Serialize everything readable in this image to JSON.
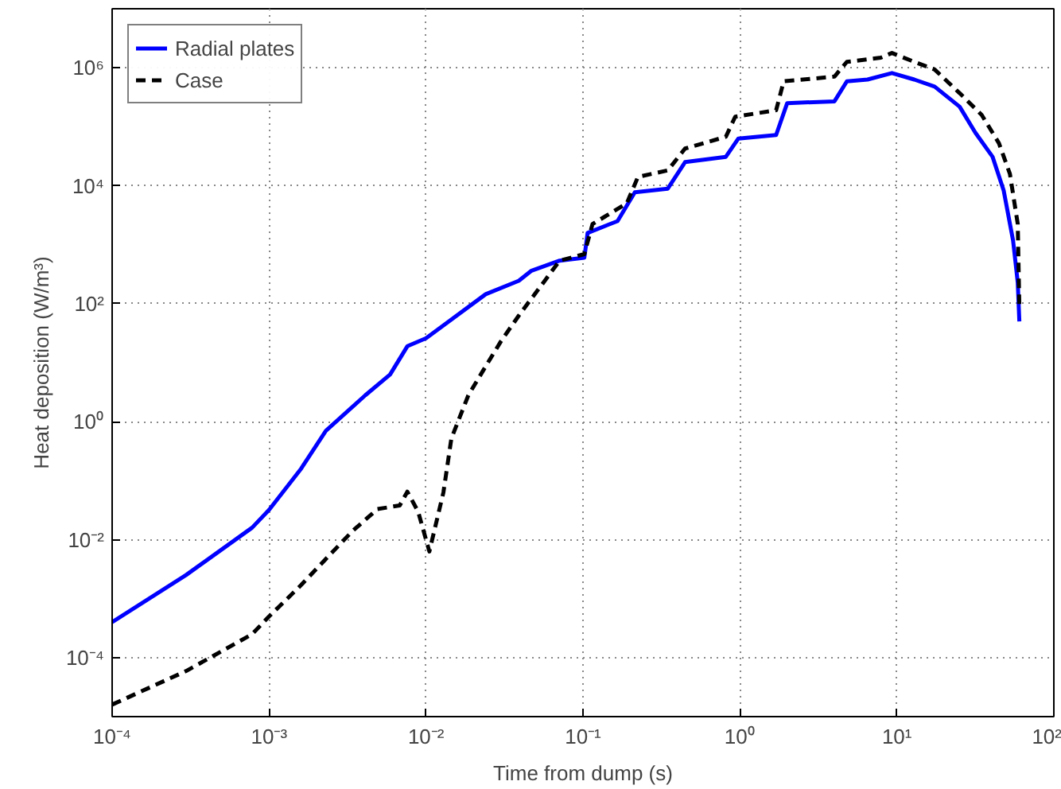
{
  "chart_data": {
    "type": "line",
    "xlabel": "Time from dump (s)",
    "ylabel": "Heat deposition (W/m³)",
    "log": "xy",
    "grid": true,
    "legend": "top left",
    "xlim": [
      0.0001,
      100
    ],
    "ylim": [
      1e-05,
      10000000
    ],
    "xticks": [
      {
        "value": 0.0001,
        "label": "10⁻⁴"
      },
      {
        "value": 0.001,
        "label": "10⁻³"
      },
      {
        "value": 0.01,
        "label": "10⁻²"
      },
      {
        "value": 0.1,
        "label": "10⁻¹"
      },
      {
        "value": 1,
        "label": "10⁰"
      },
      {
        "value": 10,
        "label": "10¹"
      },
      {
        "value": 100,
        "label": "10²"
      }
    ],
    "yticks": [
      {
        "value": 0.0001,
        "label": "10⁻⁴"
      },
      {
        "value": 0.01,
        "label": "10⁻²"
      },
      {
        "value": 1,
        "label": "10⁰"
      },
      {
        "value": 100,
        "label": "10²"
      },
      {
        "value": 10000,
        "label": "10⁴"
      },
      {
        "value": 1000000,
        "label": "10⁶"
      }
    ],
    "series": [
      {
        "name": "Radial plates",
        "color": "#0000ff",
        "line_style": "solid",
        "x": [
          0.0001,
          0.000295,
          0.00078,
          0.001,
          0.0016,
          0.0023,
          0.0041,
          0.0059,
          0.0076,
          0.01,
          0.0145,
          0.024,
          0.039,
          0.047,
          0.071,
          0.102,
          0.107,
          0.166,
          0.214,
          0.347,
          0.447,
          0.813,
          0.977,
          1.7,
          2.0,
          4.0,
          4.8,
          6.5,
          9.3,
          12.9,
          17.4,
          25.1,
          31.6,
          40.7,
          47.9,
          55,
          58.9,
          60.3
        ],
        "values": [
          0.0004,
          0.0025,
          0.016,
          0.032,
          0.16,
          0.7,
          2.8,
          6.3,
          19,
          26,
          54,
          145,
          245,
          363,
          537,
          603,
          1585,
          2512,
          7762,
          8913,
          25119,
          30903,
          63096,
          72444,
          251189,
          269153,
          588844,
          630957,
          812831,
          630957,
          478630,
          218776,
          79433,
          30903,
          8318,
          1175,
          229,
          50
        ]
      },
      {
        "name": "Case",
        "color": "#000000",
        "line_style": "dashed",
        "x": [
          0.0001,
          0.000295,
          0.00078,
          0.001,
          0.0016,
          0.0023,
          0.0034,
          0.0049,
          0.0068,
          0.0076,
          0.0089,
          0.0105,
          0.0129,
          0.0145,
          0.0186,
          0.024,
          0.03,
          0.039,
          0.056,
          0.071,
          0.102,
          0.115,
          0.19,
          0.224,
          0.347,
          0.447,
          0.813,
          0.933,
          1.7,
          1.9,
          4.0,
          4.8,
          7.9,
          9.3,
          12.9,
          17.4,
          25.1,
          34.7,
          44.7,
          52.5,
          58.9,
          60.3
        ],
        "values": [
          1.6e-05,
          5.9e-05,
          0.00025,
          0.0005,
          0.0017,
          0.0047,
          0.014,
          0.033,
          0.038,
          0.065,
          0.03,
          0.0063,
          0.063,
          0.52,
          2.8,
          8.7,
          23,
          63,
          229,
          537,
          692,
          2239,
          5012,
          14125,
          18197,
          42658,
          67608,
          147911,
          190546,
          588844,
          707946,
          1258925,
          1479108,
          1778279,
          1258925,
          933254,
          371535,
          158489,
          52481,
          15849,
          2239,
          85
        ]
      }
    ]
  }
}
